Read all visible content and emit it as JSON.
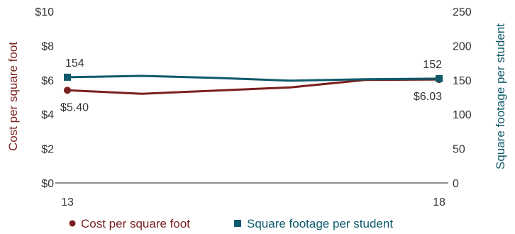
{
  "chart_data": {
    "type": "line",
    "x": [
      13,
      14,
      15,
      16,
      17,
      18
    ],
    "x_tick_labels": [
      "13",
      "18"
    ],
    "y_left": {
      "label": "Cost per square foot",
      "ticks": [
        "$0",
        "$2",
        "$4",
        "$6",
        "$8",
        "$10"
      ],
      "range": [
        0,
        10
      ],
      "color": "#7a1f1f"
    },
    "y_right": {
      "label": "Square footage per student",
      "ticks": [
        "0",
        "50",
        "100",
        "150",
        "200",
        "250"
      ],
      "range": [
        0,
        250
      ],
      "color": "#0e5a6b"
    },
    "series": [
      {
        "name": "Cost per square foot",
        "axis": "left",
        "color": "#7a1f1f",
        "marker": "circle",
        "values": [
          5.4,
          5.2,
          5.38,
          5.57,
          6.0,
          6.03
        ],
        "start_label": "$5.40",
        "end_label": "$6.03"
      },
      {
        "name": "Square footage per student",
        "axis": "right",
        "color": "#0e5a6b",
        "marker": "square",
        "values": [
          154,
          156,
          153,
          149,
          151,
          152
        ],
        "start_label": "154",
        "end_label": "152"
      }
    ],
    "grid": false,
    "legend_position": "bottom"
  }
}
